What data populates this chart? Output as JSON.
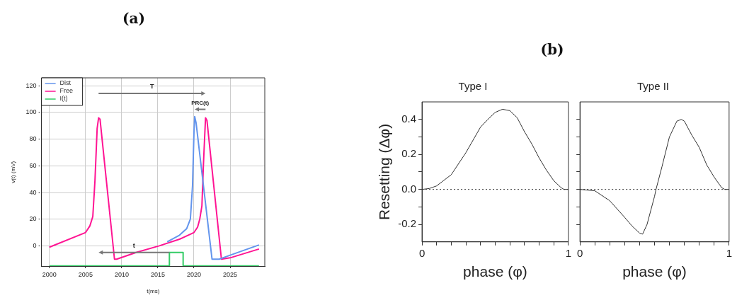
{
  "chart_data": [
    {
      "type": "line",
      "title": "(a)",
      "xlabel": "t(ms)",
      "ylabel": "v(t) (mV)",
      "xlim": [
        1998.9,
        2029.8
      ],
      "ylim": [
        -15.5,
        126
      ],
      "xticks": [
        2000,
        2005,
        2010,
        2015,
        2020,
        2025
      ],
      "yticks": [
        0,
        20,
        40,
        60,
        80,
        100,
        120
      ],
      "grid": true,
      "legend": "top left",
      "marker": "none",
      "line_style": "solid",
      "series": [
        {
          "name": "Dist",
          "color": "#6495ed",
          "x": [
            2016.3,
            2017,
            2018,
            2019,
            2019.5,
            2019.8,
            2020,
            2020.1,
            2020.3,
            2022.5,
            2023.5,
            2025,
            2029
          ],
          "values": [
            3,
            5,
            8,
            13,
            20,
            45,
            85,
            97,
            92,
            -10,
            -10,
            -7,
            0.7
          ]
        },
        {
          "name": "Free",
          "color": "#ff1493",
          "x": [
            2000,
            2005,
            2005.6,
            2006,
            2006.3,
            2006.6,
            2006.8,
            2007,
            2009,
            2009.3,
            2012,
            2015.2,
            2018,
            2020,
            2020.5,
            2020.8,
            2021.1,
            2021.3,
            2021.6,
            2021.8,
            2023.8,
            2025,
            2029
          ],
          "values": [
            -1,
            10,
            15,
            22,
            49,
            88,
            96,
            95,
            -10,
            -10,
            -5,
            0,
            5,
            10,
            14,
            20,
            30,
            60,
            96,
            94,
            -10,
            -9,
            -2.4
          ]
        },
        {
          "name": "I(t)",
          "color": "#33cc66",
          "x": [
            2000,
            2016.6,
            2016.6,
            2018.5,
            2018.5,
            2029
          ],
          "values": [
            -15,
            -15,
            -5,
            -5,
            -15,
            -15
          ]
        }
      ],
      "annotations": [
        "T",
        "PRC(t)",
        "t"
      ]
    },
    {
      "type": "line",
      "title": "(b)",
      "subtitle": "Type I",
      "xlabel": "phase (φ)",
      "ylabel": "Resetting (Δφ)",
      "xlim": [
        0,
        1
      ],
      "ylim": [
        -0.3,
        0.5
      ],
      "xticks": [
        0,
        {
          "value": 0.1,
          "label": null
        },
        {
          "value": 0.2,
          "label": null
        },
        {
          "value": 0.3,
          "label": null
        },
        {
          "value": 0.4,
          "label": null
        },
        {
          "value": 0.5,
          "label": null
        },
        {
          "value": 0.6,
          "label": null
        },
        {
          "value": 0.7,
          "label": null
        },
        {
          "value": 0.8,
          "label": null
        },
        {
          "value": 0.9,
          "label": null
        },
        1
      ],
      "yticks": [
        -0.2,
        {
          "value": -0.1,
          "label": null
        },
        {
          "value": 0,
          "label": "0.0"
        },
        {
          "value": 0.1,
          "label": null
        },
        {
          "value": 0.2,
          "label": "0.2"
        },
        {
          "value": 0.3,
          "label": null
        },
        {
          "value": 0.4,
          "label": "0.4"
        }
      ],
      "marker": "none",
      "series": [
        {
          "color": "#333333",
          "x": [
            0,
            0.05,
            0.1,
            0.2,
            0.3,
            0.4,
            0.45,
            0.5,
            0.55,
            0.6,
            0.65,
            0.7,
            0.75,
            0.8,
            0.85,
            0.9,
            0.95,
            0.97,
            1
          ],
          "values": [
            0,
            0.005,
            0.02,
            0.084,
            0.21,
            0.356,
            0.4,
            0.44,
            0.458,
            0.45,
            0.41,
            0.33,
            0.26,
            0.18,
            0.11,
            0.05,
            0.01,
            0,
            0
          ]
        }
      ],
      "ref_lines": [
        {
          "axis": "y",
          "value": 0,
          "line_style": "dotted"
        }
      ]
    },
    {
      "type": "line",
      "subtitle": "Type II",
      "xlabel": "phase (φ)",
      "xlim": [
        0,
        1
      ],
      "ylim": [
        -0.3,
        0.5
      ],
      "xticks": [
        0,
        {
          "value": 0.1,
          "label": null
        },
        {
          "value": 0.2,
          "label": null
        },
        {
          "value": 0.3,
          "label": null
        },
        {
          "value": 0.4,
          "label": null
        },
        {
          "value": 0.5,
          "label": null
        },
        {
          "value": 0.6,
          "label": null
        },
        {
          "value": 0.7,
          "label": null
        },
        {
          "value": 0.8,
          "label": null
        },
        {
          "value": 0.9,
          "label": null
        },
        1
      ],
      "yticks": [
        -0.2,
        -0.1,
        0,
        0.1,
        0.2,
        0.3,
        0.4
      ],
      "tick_labels": "x",
      "marker": "none",
      "series": [
        {
          "color": "#333333",
          "x": [
            0,
            0.1,
            0.2,
            0.3,
            0.35,
            0.4,
            0.42,
            0.45,
            0.5,
            0.51,
            0.55,
            0.6,
            0.65,
            0.68,
            0.7,
            0.75,
            0.8,
            0.85,
            0.9,
            0.95,
            0.97,
            1
          ],
          "values": [
            0,
            -0.008,
            -0.065,
            -0.16,
            -0.21,
            -0.25,
            -0.256,
            -0.2,
            -0.04,
            0,
            0.13,
            0.3,
            0.39,
            0.4,
            0.39,
            0.31,
            0.24,
            0.14,
            0.07,
            0.01,
            0,
            0
          ]
        }
      ],
      "ref_lines": [
        {
          "axis": "y",
          "value": 0,
          "line_style": "dotted"
        }
      ]
    }
  ]
}
